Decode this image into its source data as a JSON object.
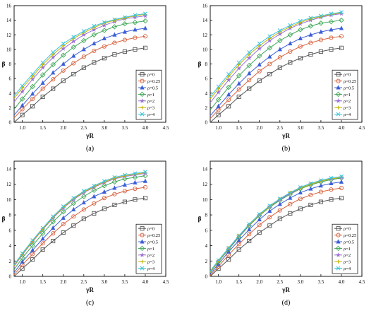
{
  "colors": {
    "axis": "#000000",
    "legend_border": "#000000",
    "series": [
      "#555555",
      "#d9633f",
      "#3c5fd8",
      "#40a85a",
      "#9a6fd6",
      "#c9b400",
      "#38c2de"
    ]
  },
  "chart_data": [
    {
      "type": "line",
      "panel_label": "(a)",
      "xlabel": "γR",
      "ylabel": "β",
      "xlim": [
        0.8,
        4.5
      ],
      "ylim": [
        0,
        16
      ],
      "xticks": [
        "1.0",
        "1.5",
        "2.0",
        "2.5",
        "3.0",
        "3.5",
        "4.0",
        "4.5"
      ],
      "yticks": [
        "0",
        "2",
        "4",
        "6",
        "8",
        "10",
        "12",
        "14",
        "16"
      ],
      "legend_position": "bottom-right",
      "x": [
        0.8,
        1.0,
        1.25,
        1.5,
        1.75,
        2.0,
        2.25,
        2.5,
        2.75,
        3.0,
        3.25,
        3.5,
        3.75,
        4.0
      ],
      "series": [
        {
          "name": "ρ=0",
          "marker": "square",
          "values": [
            0.0,
            1.0,
            2.2,
            3.5,
            4.6,
            5.7,
            6.6,
            7.5,
            8.2,
            8.8,
            9.3,
            9.7,
            10.0,
            10.2
          ]
        },
        {
          "name": "ρ=0.25",
          "marker": "circle",
          "values": [
            0.6,
            1.8,
            3.2,
            4.6,
            5.9,
            7.1,
            8.1,
            9.0,
            9.8,
            10.4,
            10.9,
            11.3,
            11.6,
            11.8
          ]
        },
        {
          "name": "ρ=0.5",
          "marker": "triangle",
          "values": [
            1.0,
            2.3,
            3.9,
            5.4,
            6.8,
            8.0,
            9.1,
            10.0,
            10.8,
            11.5,
            12.0,
            12.4,
            12.7,
            12.9
          ]
        },
        {
          "name": "ρ=1",
          "marker": "diamond",
          "values": [
            1.8,
            3.2,
            4.9,
            6.5,
            7.9,
            9.2,
            10.3,
            11.2,
            12.0,
            12.6,
            13.1,
            13.5,
            13.7,
            13.9
          ]
        },
        {
          "name": "ρ=2",
          "marker": "star",
          "values": [
            2.8,
            4.2,
            5.9,
            7.5,
            8.9,
            10.1,
            11.1,
            12.0,
            12.7,
            13.3,
            13.8,
            14.2,
            14.4,
            14.6
          ]
        },
        {
          "name": "ρ=3",
          "marker": "plus",
          "values": [
            3.3,
            4.7,
            6.3,
            7.9,
            9.3,
            10.5,
            11.5,
            12.3,
            13.0,
            13.6,
            14.0,
            14.3,
            14.6,
            14.8
          ]
        },
        {
          "name": "ρ=4",
          "marker": "x",
          "values": [
            3.6,
            5.0,
            6.6,
            8.2,
            9.6,
            10.8,
            11.7,
            12.5,
            13.2,
            13.7,
            14.1,
            14.4,
            14.7,
            14.9
          ]
        }
      ]
    },
    {
      "type": "line",
      "panel_label": "(b)",
      "xlabel": "γR",
      "ylabel": "β",
      "xlim": [
        0.8,
        4.5
      ],
      "ylim": [
        0,
        16
      ],
      "xticks": [
        "1.0",
        "1.5",
        "2.0",
        "2.5",
        "3.0",
        "3.5",
        "4.0",
        "4.5"
      ],
      "yticks": [
        "0",
        "2",
        "4",
        "6",
        "8",
        "10",
        "12",
        "14",
        "16"
      ],
      "legend_position": "bottom-right",
      "x": [
        0.8,
        1.0,
        1.25,
        1.5,
        1.75,
        2.0,
        2.25,
        2.5,
        2.75,
        3.0,
        3.25,
        3.5,
        3.75,
        4.0
      ],
      "series": [
        {
          "name": "ρ=0",
          "marker": "square",
          "values": [
            0.0,
            1.0,
            2.2,
            3.5,
            4.6,
            5.7,
            6.6,
            7.5,
            8.2,
            8.8,
            9.3,
            9.7,
            10.0,
            10.2
          ]
        },
        {
          "name": "ρ=0.25",
          "marker": "circle",
          "values": [
            0.5,
            1.7,
            3.1,
            4.5,
            5.8,
            7.0,
            8.0,
            8.9,
            9.7,
            10.4,
            10.9,
            11.3,
            11.6,
            11.8
          ]
        },
        {
          "name": "ρ=0.5",
          "marker": "triangle",
          "values": [
            0.9,
            2.2,
            3.8,
            5.3,
            6.7,
            7.9,
            9.0,
            10.0,
            10.8,
            11.5,
            12.0,
            12.4,
            12.7,
            12.9
          ]
        },
        {
          "name": "ρ=1",
          "marker": "diamond",
          "values": [
            1.7,
            3.1,
            4.8,
            6.4,
            7.8,
            9.1,
            10.2,
            11.2,
            12.0,
            12.7,
            13.2,
            13.6,
            13.8,
            14.0
          ]
        },
        {
          "name": "ρ=2",
          "marker": "star",
          "values": [
            2.7,
            4.1,
            5.8,
            7.4,
            8.8,
            10.1,
            11.2,
            12.1,
            12.9,
            13.5,
            14.0,
            14.4,
            14.7,
            14.9
          ]
        },
        {
          "name": "ρ=3",
          "marker": "plus",
          "values": [
            3.2,
            4.6,
            6.3,
            7.9,
            9.3,
            10.5,
            11.5,
            12.4,
            13.1,
            13.7,
            14.2,
            14.5,
            14.8,
            15.0
          ]
        },
        {
          "name": "ρ=4",
          "marker": "x",
          "values": [
            3.5,
            4.9,
            6.6,
            8.2,
            9.6,
            10.8,
            11.8,
            12.6,
            13.3,
            13.9,
            14.3,
            14.6,
            14.9,
            15.1
          ]
        }
      ]
    },
    {
      "type": "line",
      "panel_label": "(c)",
      "xlabel": "γR",
      "ylabel": "β",
      "xlim": [
        0.8,
        4.5
      ],
      "ylim": [
        0,
        15
      ],
      "xticks": [
        "1.0",
        "1.5",
        "2.0",
        "2.5",
        "3.0",
        "3.5",
        "4.0",
        "4.5"
      ],
      "yticks": [
        "0",
        "2",
        "4",
        "6",
        "8",
        "10",
        "12",
        "14"
      ],
      "legend_position": "bottom-right",
      "x": [
        0.8,
        1.0,
        1.25,
        1.5,
        1.75,
        2.0,
        2.25,
        2.5,
        2.75,
        3.0,
        3.25,
        3.5,
        3.75,
        4.0
      ],
      "series": [
        {
          "name": "ρ=0",
          "marker": "square",
          "values": [
            0.0,
            1.0,
            2.2,
            3.5,
            4.6,
            5.7,
            6.6,
            7.5,
            8.2,
            8.8,
            9.3,
            9.7,
            10.0,
            10.2
          ]
        },
        {
          "name": "ρ=0.25",
          "marker": "circle",
          "values": [
            0.2,
            1.5,
            2.9,
            4.3,
            5.6,
            6.8,
            7.8,
            8.7,
            9.5,
            10.2,
            10.7,
            11.1,
            11.4,
            11.6
          ]
        },
        {
          "name": "ρ=0.5",
          "marker": "triangle",
          "values": [
            0.5,
            1.9,
            3.4,
            4.9,
            6.3,
            7.6,
            8.7,
            9.6,
            10.4,
            11.0,
            11.5,
            11.9,
            12.2,
            12.4
          ]
        },
        {
          "name": "ρ=1",
          "marker": "diamond",
          "values": [
            0.9,
            2.4,
            4.0,
            5.6,
            7.1,
            8.4,
            9.5,
            10.4,
            11.2,
            11.8,
            12.3,
            12.7,
            12.9,
            13.1
          ]
        },
        {
          "name": "ρ=2",
          "marker": "star",
          "values": [
            1.3,
            2.8,
            4.5,
            6.1,
            7.6,
            8.9,
            10.0,
            10.9,
            11.6,
            12.2,
            12.7,
            13.0,
            13.2,
            13.4
          ]
        },
        {
          "name": "ρ=3",
          "marker": "plus",
          "values": [
            1.4,
            2.9,
            4.6,
            6.2,
            7.7,
            9.0,
            10.1,
            11.0,
            11.7,
            12.3,
            12.8,
            13.1,
            13.3,
            13.5
          ]
        },
        {
          "name": "ρ=4",
          "marker": "x",
          "values": [
            1.5,
            3.0,
            4.7,
            6.3,
            7.8,
            9.1,
            10.2,
            11.1,
            11.8,
            12.4,
            12.9,
            13.2,
            13.4,
            13.6
          ]
        }
      ]
    },
    {
      "type": "line",
      "panel_label": "(d)",
      "xlabel": "γR",
      "ylabel": "β",
      "xlim": [
        0.8,
        4.5
      ],
      "ylim": [
        0,
        15
      ],
      "xticks": [
        "1.0",
        "1.5",
        "2.0",
        "2.5",
        "3.0",
        "3.5",
        "4.0",
        "4.5"
      ],
      "yticks": [
        "0",
        "2",
        "4",
        "6",
        "8",
        "10",
        "12",
        "14"
      ],
      "legend_position": "bottom-right",
      "x": [
        0.8,
        1.0,
        1.25,
        1.5,
        1.75,
        2.0,
        2.25,
        2.5,
        2.75,
        3.0,
        3.25,
        3.5,
        3.75,
        4.0
      ],
      "series": [
        {
          "name": "ρ=0",
          "marker": "square",
          "values": [
            0.0,
            1.0,
            2.2,
            3.5,
            4.6,
            5.7,
            6.6,
            7.5,
            8.2,
            8.8,
            9.3,
            9.7,
            10.0,
            10.2
          ]
        },
        {
          "name": "ρ=0.25",
          "marker": "circle",
          "values": [
            0.1,
            1.3,
            2.8,
            4.2,
            5.5,
            6.7,
            7.7,
            8.6,
            9.4,
            10.1,
            10.6,
            11.0,
            11.3,
            11.5
          ]
        },
        {
          "name": "ρ=0.5",
          "marker": "triangle",
          "values": [
            0.3,
            1.6,
            3.2,
            4.7,
            6.1,
            7.4,
            8.5,
            9.4,
            10.2,
            10.9,
            11.4,
            11.8,
            12.1,
            12.3
          ]
        },
        {
          "name": "ρ=1",
          "marker": "diamond",
          "values": [
            0.5,
            1.9,
            3.5,
            5.1,
            6.6,
            7.9,
            9.0,
            9.9,
            10.7,
            11.4,
            11.9,
            12.3,
            12.6,
            12.8
          ]
        },
        {
          "name": "ρ=2",
          "marker": "star",
          "values": [
            0.6,
            2.0,
            3.6,
            5.2,
            6.7,
            8.0,
            9.1,
            10.0,
            10.8,
            11.5,
            12.0,
            12.4,
            12.7,
            12.9
          ]
        },
        {
          "name": "ρ=3",
          "marker": "plus",
          "values": [
            0.6,
            2.0,
            3.7,
            5.3,
            6.7,
            8.0,
            9.1,
            10.1,
            10.9,
            11.5,
            12.0,
            12.4,
            12.7,
            12.9
          ]
        },
        {
          "name": "ρ=4",
          "marker": "x",
          "values": [
            0.7,
            2.1,
            3.7,
            5.3,
            6.8,
            8.1,
            9.2,
            10.1,
            10.9,
            11.6,
            12.1,
            12.5,
            12.8,
            13.0
          ]
        }
      ]
    }
  ]
}
